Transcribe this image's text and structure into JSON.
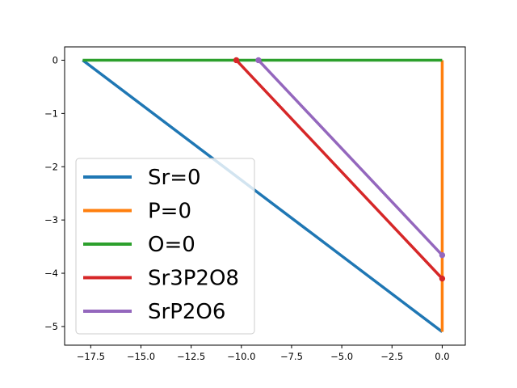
{
  "chart_data": {
    "type": "line",
    "title": "",
    "xlabel": "",
    "ylabel": "",
    "xlim": [
      -18.8,
      1.15
    ],
    "ylim": [
      -5.35,
      0.25
    ],
    "xticks": [
      -17.5,
      -15.0,
      -12.5,
      -10.0,
      -7.5,
      -5.0,
      -2.5,
      0.0
    ],
    "xtick_labels": [
      "−17.5",
      "−15.0",
      "−12.5",
      "−10.0",
      "−7.5",
      "−5.0",
      "−2.5",
      "0.0"
    ],
    "yticks": [
      0,
      -1,
      -2,
      -3,
      -4,
      -5
    ],
    "ytick_labels": [
      "0",
      "−1",
      "−2",
      "−3",
      "−4",
      "−5"
    ],
    "grid": false,
    "legend_position": "lower-left",
    "series": [
      {
        "name": "Sr=0",
        "color": "#1f77b4",
        "x": [
          -17.9,
          0.0
        ],
        "y": [
          0.0,
          -5.1
        ],
        "markers": false
      },
      {
        "name": "P=0",
        "color": "#ff7f0e",
        "x": [
          0.0,
          0.0
        ],
        "y": [
          0.0,
          -5.1
        ],
        "markers": false
      },
      {
        "name": "O=0",
        "color": "#2ca02c",
        "x": [
          -17.9,
          0.0
        ],
        "y": [
          0.0,
          0.0
        ],
        "markers": false
      },
      {
        "name": "Sr3P2O8",
        "color": "#d62728",
        "x": [
          -10.25,
          0.0
        ],
        "y": [
          0.0,
          -4.1
        ],
        "markers": true
      },
      {
        "name": "SrP2O6",
        "color": "#9467bd",
        "x": [
          -9.15,
          0.0
        ],
        "y": [
          0.0,
          -3.66
        ],
        "markers": true
      }
    ]
  }
}
